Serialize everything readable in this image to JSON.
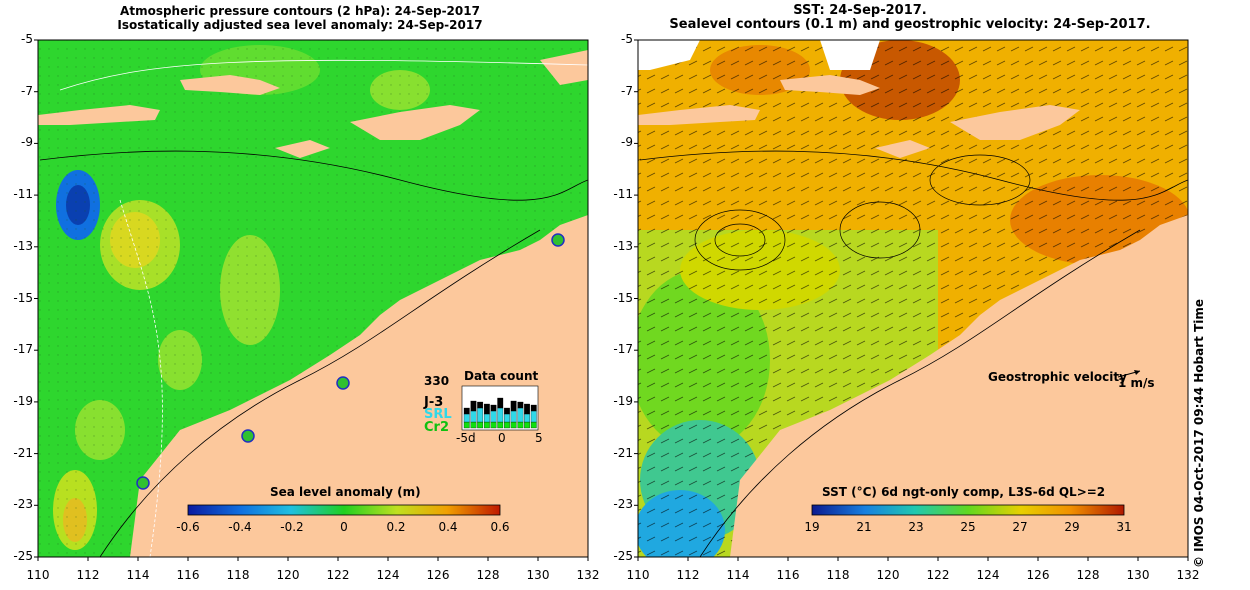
{
  "left_panel": {
    "title_line1": "Atmospheric pressure contours (2 hPa): 24-Sep-2017",
    "title_line2": "Isostatically adjusted sea level anomaly: 24-Sep-2017",
    "colorbar_title": "Sea level anomaly (m)",
    "colorbar_ticks": [
      "-0.6",
      "-0.4",
      "-0.2",
      "0",
      "0.2",
      "0.4",
      "0.6"
    ],
    "data_count": {
      "title": "Data count",
      "max_label": "330",
      "sat_labels": [
        "J-3",
        "SRL",
        "Cr2"
      ],
      "sat_colors": [
        "#000000",
        "#30d8e8",
        "#10e010"
      ],
      "x_ticks": [
        "-5d",
        "0",
        "5"
      ]
    }
  },
  "right_panel": {
    "title_line1": "SST: 24-Sep-2017.",
    "title_line2": "Sealevel contours (0.1 m) and geostrophic velocity: 24-Sep-2017.",
    "velocity_label": "Geostrophic velocity",
    "velocity_scale": "1 m/s",
    "colorbar_title": "SST (°C) 6d ngt-only comp, L3S-6d QL>=2",
    "colorbar_ticks": [
      "19",
      "21",
      "23",
      "25",
      "27",
      "29",
      "31"
    ]
  },
  "axes": {
    "y_ticks": [
      "-5",
      "-7",
      "-9",
      "-11",
      "-13",
      "-15",
      "-17",
      "-19",
      "-21",
      "-23",
      "-25"
    ],
    "x_ticks": [
      "110",
      "112",
      "114",
      "116",
      "118",
      "120",
      "122",
      "124",
      "126",
      "128",
      "130",
      "132"
    ]
  },
  "credit": "© IMOS 04-Oct-2017 09:44 Hobart Time",
  "colors": {
    "land": "#fcc89c",
    "sea_left": "#33d933",
    "sea_right": "#f0b000"
  }
}
